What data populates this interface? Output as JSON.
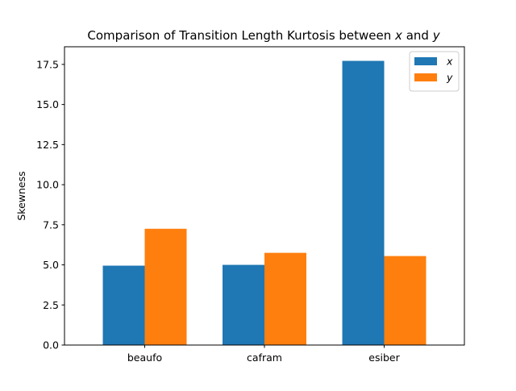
{
  "chart_data": {
    "type": "bar",
    "title_parts": [
      "Comparison of Transition Length Kurtosis between ",
      "x",
      " and ",
      "y"
    ],
    "xlabel": "",
    "ylabel": "Skewness",
    "categories": [
      "beaufo",
      "cafram",
      "esiber"
    ],
    "series": [
      {
        "name": "x",
        "color": "#1f77b4",
        "values": [
          4.95,
          5.0,
          17.72
        ]
      },
      {
        "name": "y",
        "color": "#ff7f0e",
        "values": [
          7.25,
          5.75,
          5.55
        ]
      }
    ],
    "ylim": [
      0,
      18.6
    ],
    "yticks": [
      0.0,
      2.5,
      5.0,
      7.5,
      10.0,
      12.5,
      15.0,
      17.5
    ],
    "ytick_labels": [
      "0.0",
      "2.5",
      "5.0",
      "7.5",
      "10.0",
      "12.5",
      "15.0",
      "17.5"
    ],
    "grid": false,
    "legend_position": "top-right"
  }
}
